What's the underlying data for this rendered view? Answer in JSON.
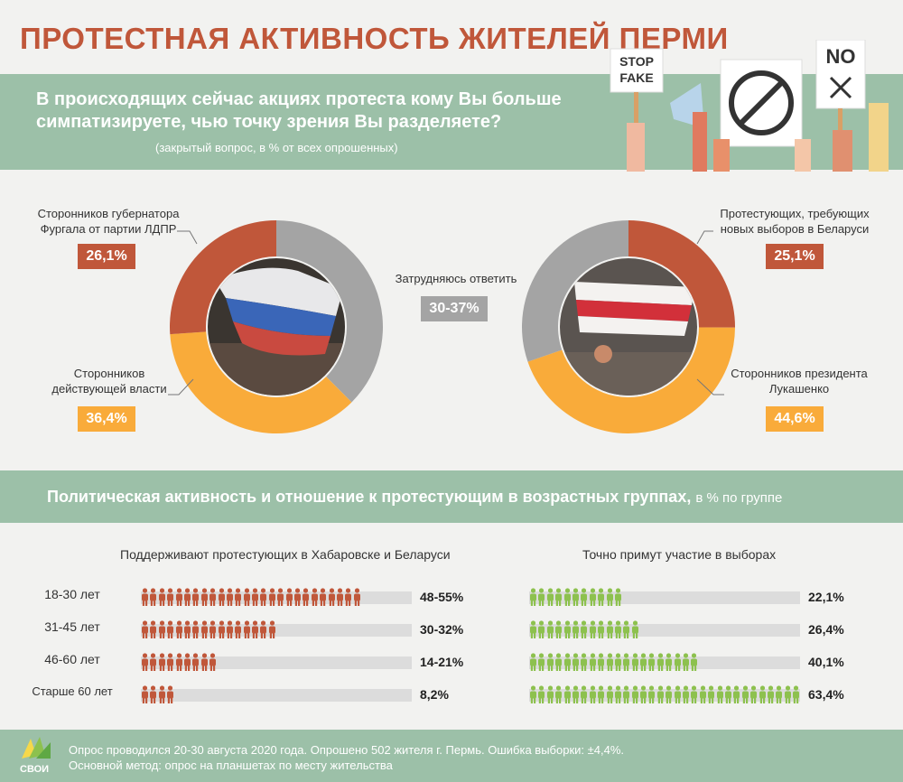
{
  "title": "ПРОТЕСТНАЯ АКТИВНОСТЬ ЖИТЕЛЕЙ ПЕРМИ",
  "question": "В происходящих сейчас акциях протеста кому Вы больше симпатизируете, чью точку зрения Вы разделяете?",
  "question_note": "(закрытый вопрос, в % от всех опрошенных)",
  "illustration": {
    "sign1": "STOP FAKE",
    "sign2": "NO",
    "sign1_line1": "STOP",
    "sign1_line2": "FAKE"
  },
  "middle_label": "Затрудняюсь ответить",
  "middle_value": "30-37%",
  "section2_title": "Политическая активность и отношение к протестующим в возрастных группах,",
  "section2_unit": "в % по группе",
  "col1_title": "Поддерживают протестующих в Хабаровске и Беларуси",
  "col2_title": "Точно примут участие в выборах",
  "footer_line1": "Опрос проводился 20-30 августа 2020 года. Опрошено 502 жителя г. Пермь. Ошибка выборки: ±4,4%.",
  "footer_line2": "Основной метод: опрос на планшетах по месту жительства",
  "logo": "СВОИ",
  "colors": {
    "orange": "#f9ab3a",
    "rust": "#c0573a",
    "gray": "#a4a4a4",
    "green": "#8dc14e",
    "band": "#9cc0a8"
  },
  "chart_data": [
    {
      "type": "pie",
      "labels": [
        "Сторонников губернатора Фургала от партии ЛДПР",
        "Сторонников действующей власти",
        "Затрудняюсь ответить"
      ],
      "values": [
        26.1,
        36.4,
        37.5
      ],
      "display": [
        "26,1%",
        "36,4%",
        "30-37%"
      ]
    },
    {
      "type": "pie",
      "labels": [
        "Протестующих, требующих новых выборов в Беларуси",
        "Сторонников президента Лукашенко",
        "Затрудняюсь ответить"
      ],
      "values": [
        25.1,
        44.6,
        30.3
      ],
      "display": [
        "25,1%",
        "44,6%",
        "30-37%"
      ]
    },
    {
      "type": "bar",
      "title": "Поддерживают протестующих в Хабаровске и Беларуси",
      "categories": [
        "18-30 лет",
        "31-45 лет",
        "46-60 лет",
        "Старше 60 лет"
      ],
      "values": [
        51.5,
        31,
        17.5,
        8.2
      ],
      "display": [
        "48-55%",
        "30-32%",
        "14-21%",
        "8,2%"
      ],
      "xlim": [
        0,
        100
      ]
    },
    {
      "type": "bar",
      "title": "Точно примут участие в выборах",
      "categories": [
        "18-30 лет",
        "31-45 лет",
        "46-60 лет",
        "Старше 60 лет"
      ],
      "values": [
        22.1,
        26.4,
        40.1,
        63.4
      ],
      "display": [
        "22,1%",
        "26,4%",
        "40,1%",
        "63,4%"
      ],
      "xlim": [
        0,
        100
      ]
    }
  ]
}
